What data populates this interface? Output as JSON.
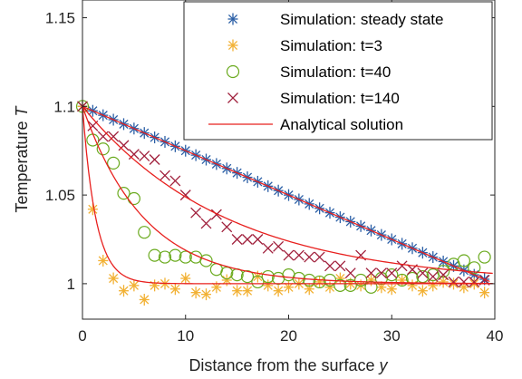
{
  "chart_data": {
    "type": "scatter",
    "xlabel": "Distance from the surface",
    "xlabel_symbol": "y",
    "ylabel": "Temperature",
    "ylabel_symbol": "T",
    "xlim": [
      0,
      40
    ],
    "ylim": [
      0.98,
      1.16
    ],
    "xticks": [
      "0",
      "10",
      "20",
      "30",
      "40"
    ],
    "yticks": [
      "1",
      "1.05",
      "1.1",
      "1.15"
    ],
    "grid": false,
    "legend_position": "top-right",
    "series": [
      {
        "name": "Simulation: steady state",
        "marker": "asterisk",
        "color": "#2b5fa6",
        "x": [
          0,
          1,
          2,
          3,
          4,
          5,
          6,
          7,
          8,
          9,
          10,
          11,
          12,
          13,
          14,
          15,
          16,
          17,
          18,
          19,
          20,
          21,
          22,
          23,
          24,
          25,
          26,
          27,
          28,
          29,
          30,
          31,
          32,
          33,
          34,
          35,
          36,
          37,
          38,
          39
        ],
        "y": [
          1.1,
          1.0975,
          1.095,
          1.0925,
          1.09,
          1.0875,
          1.085,
          1.0825,
          1.08,
          1.0775,
          1.075,
          1.0725,
          1.07,
          1.0675,
          1.065,
          1.0625,
          1.06,
          1.0575,
          1.055,
          1.0525,
          1.05,
          1.0475,
          1.045,
          1.0425,
          1.04,
          1.0375,
          1.035,
          1.0325,
          1.03,
          1.0275,
          1.025,
          1.0225,
          1.02,
          1.0175,
          1.015,
          1.0125,
          1.01,
          1.0075,
          1.005,
          1.0025
        ]
      },
      {
        "name": "Simulation: t=3",
        "marker": "asterisk",
        "color": "#f2b134",
        "x": [
          0,
          1,
          2,
          3,
          4,
          5,
          6,
          7,
          8,
          9,
          10,
          11,
          12,
          13,
          14,
          15,
          16,
          17,
          18,
          19,
          20,
          21,
          22,
          23,
          24,
          25,
          26,
          27,
          28,
          29,
          30,
          31,
          32,
          33,
          34,
          35,
          36,
          37,
          38,
          39
        ],
        "y": [
          1.1,
          1.042,
          1.013,
          1.003,
          0.996,
          0.999,
          0.991,
          0.999,
          1.0,
          0.997,
          1.003,
          0.995,
          0.994,
          0.998,
          1.002,
          0.996,
          0.996,
          1.004,
          0.999,
          0.996,
          0.998,
          1.0,
          0.997,
          1.001,
          0.998,
          1.003,
          1.0,
          0.999,
          1.002,
          0.998,
          0.997,
          1.002,
          0.999,
          0.996,
          0.999,
          1.001,
          1.0,
          0.998,
          1.0,
          0.995
        ]
      },
      {
        "name": "Simulation: t=40",
        "marker": "circle",
        "color": "#6aaa1e",
        "x": [
          0,
          1,
          2,
          3,
          4,
          5,
          6,
          7,
          8,
          9,
          10,
          11,
          12,
          13,
          14,
          15,
          16,
          17,
          18,
          19,
          20,
          21,
          22,
          23,
          24,
          25,
          26,
          27,
          28,
          29,
          30,
          31,
          32,
          33,
          34,
          35,
          36,
          37,
          38,
          39
        ],
        "y": [
          1.1,
          1.081,
          1.076,
          1.068,
          1.051,
          1.048,
          1.029,
          1.016,
          1.015,
          1.016,
          1.015,
          1.015,
          1.013,
          1.008,
          1.006,
          1.005,
          1.004,
          1.001,
          1.004,
          1.003,
          1.005,
          1.003,
          1.002,
          1.001,
          1.002,
          0.999,
          0.999,
          1.002,
          0.998,
          1.003,
          1.005,
          1.002,
          1.003,
          1.004,
          1.005,
          1.007,
          1.011,
          1.013,
          1.009,
          1.015
        ]
      },
      {
        "name": "Simulation: t=140",
        "marker": "cross",
        "color": "#a0203c",
        "x": [
          0,
          1,
          2,
          3,
          4,
          5,
          6,
          7,
          8,
          9,
          10,
          11,
          12,
          13,
          14,
          15,
          16,
          17,
          18,
          19,
          20,
          21,
          22,
          23,
          24,
          25,
          26,
          27,
          28,
          29,
          30,
          31,
          32,
          33,
          34,
          35,
          36,
          37,
          38,
          39
        ],
        "y": [
          1.1,
          1.089,
          1.083,
          1.083,
          1.078,
          1.073,
          1.072,
          1.07,
          1.061,
          1.058,
          1.05,
          1.04,
          1.034,
          1.039,
          1.032,
          1.025,
          1.025,
          1.025,
          1.02,
          1.021,
          1.016,
          1.016,
          1.015,
          1.015,
          1.01,
          1.01,
          1.006,
          1.016,
          1.006,
          1.006,
          1.006,
          1.01,
          1.008,
          1.006,
          1.004,
          1.005,
          1.001,
          1.001,
          1.001,
          1.002
        ]
      }
    ],
    "analytical": {
      "name": "Analytical solution",
      "color": "#e8201e",
      "steady_state": {
        "T0": 1.1,
        "slope": -0.0025
      },
      "curves": [
        {
          "amplitude": 0.1,
          "decay_length": 1.3
        },
        {
          "amplitude": 0.1,
          "decay_length": 6.0
        },
        {
          "amplitude": 0.1,
          "decay_length": 14.0
        }
      ]
    }
  }
}
